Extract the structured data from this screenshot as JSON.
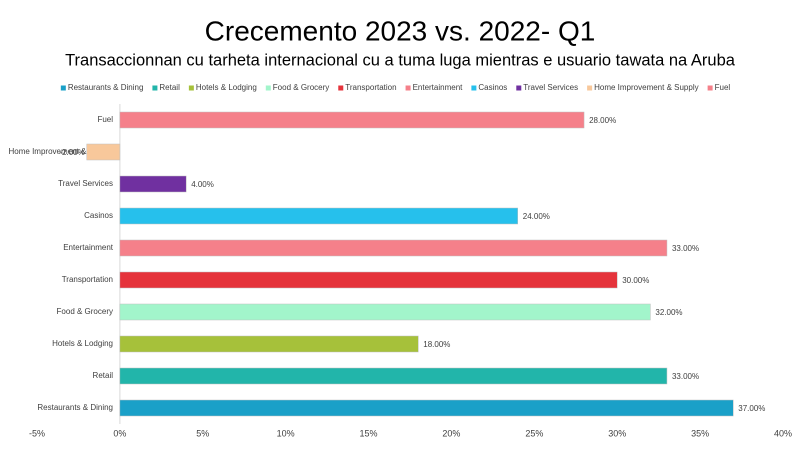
{
  "chart_data": {
    "type": "hbar",
    "title": "Crecemento 2023 vs. 2022- Q1",
    "subtitle": "Transaccionnan cu tarheta internacional cu a tuma luga mientras e usuario tawata na Aruba",
    "categories": [
      "Restaurants & Dining",
      "Retail",
      "Hotels & Lodging",
      "Food & Grocery",
      "Transportation",
      "Entertainment",
      "Casinos",
      "Travel Services",
      "Home Improvement & Supply",
      "Fuel"
    ],
    "values": [
      37,
      33,
      18,
      32,
      30,
      33,
      24,
      4,
      -2,
      28
    ],
    "value_labels": [
      "37.00%",
      "33.00%",
      "18.00%",
      "32.00%",
      "30.00%",
      "33.00%",
      "24.00%",
      "4.00%",
      "-2.00%",
      "28.00%"
    ],
    "colors": [
      "#1aa0c8",
      "#22b5aa",
      "#a6c13a",
      "#a2f5cb",
      "#e5333b",
      "#f5808a",
      "#26c0ec",
      "#7030a0",
      "#f8c89b",
      "#f5808a"
    ],
    "xlim": [
      -5,
      40
    ],
    "xticks": [
      {
        "value": -5,
        "label": "-5%"
      },
      {
        "value": 0,
        "label": "0%"
      },
      {
        "value": 5,
        "label": "5%"
      },
      {
        "value": 10,
        "label": "10%"
      },
      {
        "value": 15,
        "label": "15%"
      },
      {
        "value": 20,
        "label": "20%"
      },
      {
        "value": 25,
        "label": "25%"
      },
      {
        "value": 30,
        "label": "30%"
      },
      {
        "value": 35,
        "label": "35%"
      },
      {
        "value": 40,
        "label": "40%"
      }
    ],
    "legend": "top"
  }
}
